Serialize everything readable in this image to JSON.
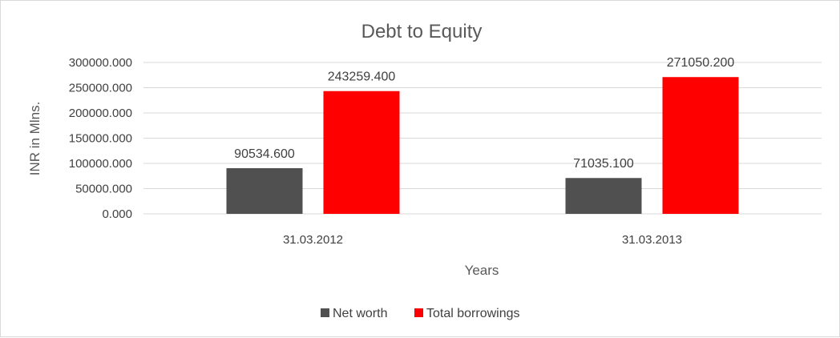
{
  "chart_data": {
    "type": "bar",
    "title": "Debt to Equity",
    "xlabel": "Years",
    "ylabel": "INR in Mlns.",
    "categories": [
      "31.03.2012",
      "31.03.2013"
    ],
    "series": [
      {
        "name": "Net worth",
        "color": "#505050",
        "values": [
          90534.6,
          71035.1
        ],
        "labels": [
          "90534.600",
          "71035.100"
        ]
      },
      {
        "name": "Total borrowings",
        "color": "#ff0000",
        "values": [
          243259.4,
          271050.2
        ],
        "labels": [
          "243259.400",
          "271050.200"
        ]
      }
    ],
    "ylim": [
      0,
      300000
    ],
    "yticks": [
      0,
      50000,
      100000,
      150000,
      200000,
      250000,
      300000
    ],
    "ytick_labels": [
      "0.000",
      "50000.000",
      "100000.000",
      "150000.000",
      "200000.000",
      "250000.000",
      "300000.000"
    ],
    "grid": true,
    "legend_position": "bottom"
  }
}
